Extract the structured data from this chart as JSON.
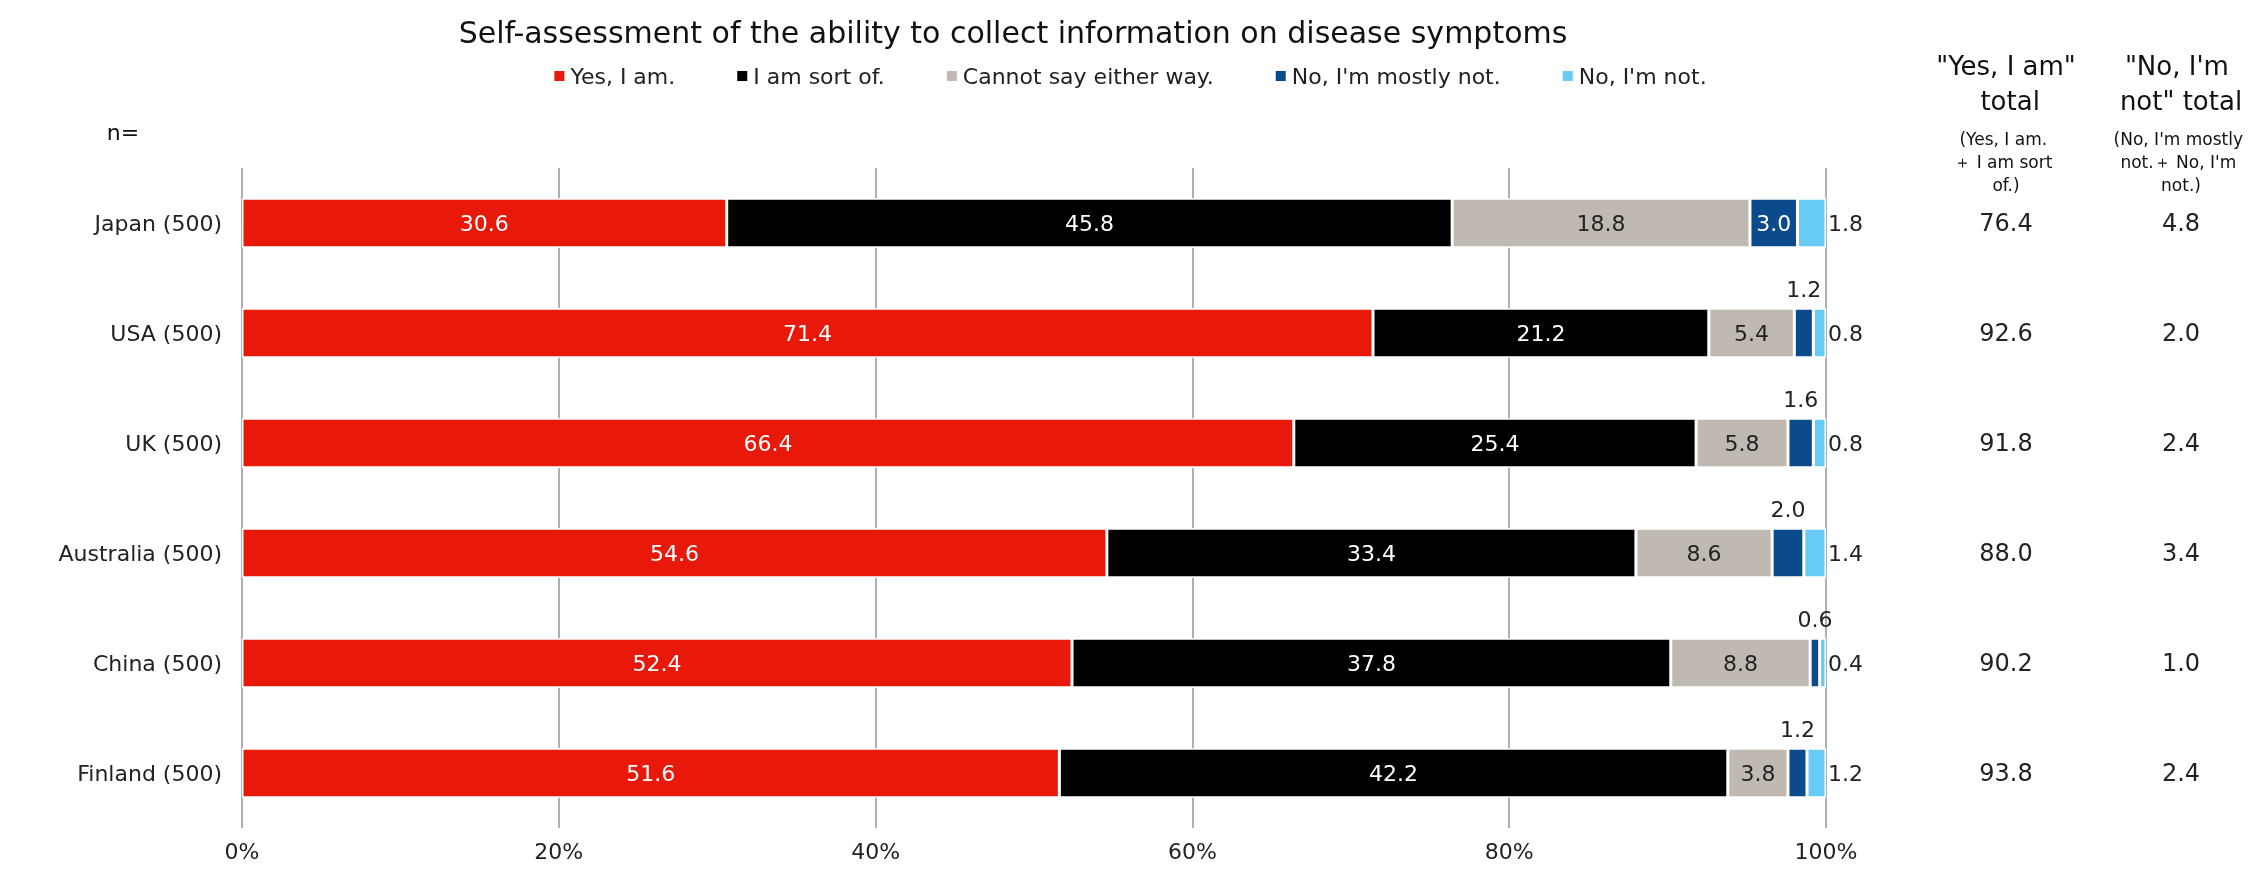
{
  "chart_data": {
    "type": "bar",
    "orientation": "horizontal",
    "stacked": true,
    "title": "Self-assessment of the ability to collect information on disease symptoms",
    "categories": [
      "Japan (500)",
      "USA (500)",
      "UK (500)",
      "Australia (500)",
      "China (500)",
      "Finland (500)"
    ],
    "series": [
      {
        "name": "Yes, I am.",
        "color": "#e8190a",
        "values": [
          30.6,
          71.4,
          66.4,
          54.6,
          52.4,
          51.6
        ]
      },
      {
        "name": "I am sort of.",
        "color": "#000000",
        "values": [
          45.8,
          21.2,
          25.4,
          33.4,
          37.8,
          42.2
        ]
      },
      {
        "name": "Cannot say either way.",
        "color": "#c0b9b2",
        "values": [
          18.8,
          5.4,
          5.8,
          8.6,
          8.8,
          3.8
        ]
      },
      {
        "name": "No, I'm mostly not.",
        "color": "#0b4a8b",
        "values": [
          3.0,
          1.2,
          1.6,
          2.0,
          0.6,
          1.2
        ],
        "value_labels": [
          "3.0",
          "1.2",
          "1.6",
          "2.0",
          "0.6",
          "1.2"
        ]
      },
      {
        "name": "No, I'm not.",
        "color": "#66ccf5",
        "values": [
          1.8,
          0.8,
          0.8,
          1.4,
          0.4,
          1.2
        ]
      }
    ],
    "xlim": [
      0,
      100
    ],
    "xticks": [
      {
        "value": 0,
        "label": "0%"
      },
      {
        "value": 20,
        "label": "20%"
      },
      {
        "value": 40,
        "label": "40%"
      },
      {
        "value": 60,
        "label": "60%"
      },
      {
        "value": 80,
        "label": "80%"
      },
      {
        "value": 100,
        "label": "100%"
      }
    ],
    "grid": "x",
    "legend": "top",
    "data_labels": true,
    "annotations": [
      "n=",
      "\"Yes, I am\" total",
      "(Yes, I am. ＋ I am sort of.)",
      "\"No, I'm not\" total",
      "(No, I'm mostly not.＋ No, I'm not.)",
      "76.4",
      "4.8",
      "92.6",
      "2.0",
      "91.8",
      "2.4",
      "88.0",
      "3.4",
      "90.2",
      "1.0",
      "93.8",
      "2.4"
    ]
  }
}
